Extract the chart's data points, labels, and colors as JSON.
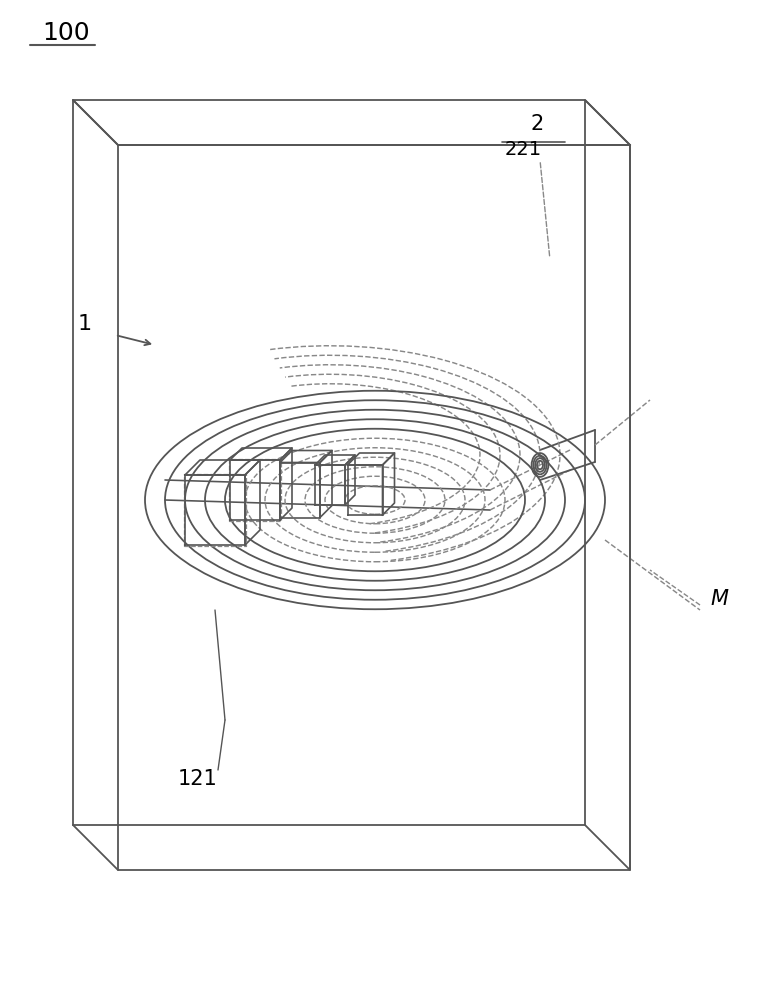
{
  "bg_color": "#ffffff",
  "line_color": "#555555",
  "dashed_color": "#888888",
  "label_color": "#000000",
  "figsize": [
    7.57,
    10.0
  ],
  "dpi": 100,
  "labels": {
    "top_left": "100",
    "label_1": "1",
    "label_2": "2",
    "label_221": "221",
    "label_121": "121",
    "label_M": "M"
  }
}
